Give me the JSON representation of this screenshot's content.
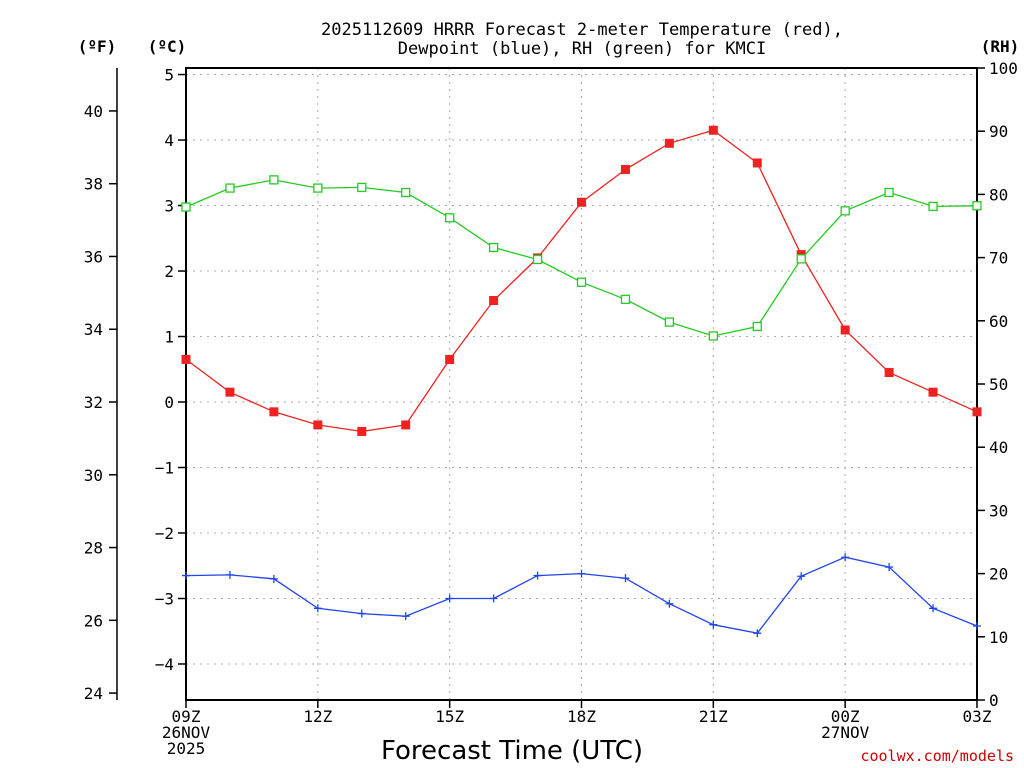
{
  "chart_data": {
    "type": "line",
    "title_lines": [
      "2025112609 HRRR Forecast 2-meter Temperature (red),",
      "Dewpoint (blue), RH (green) for KMCI"
    ],
    "xlabel": "Forecast Time (UTC)",
    "credit": "coolwx.com/models",
    "x_hours": [
      9,
      10,
      11,
      12,
      13,
      14,
      15,
      16,
      17,
      18,
      19,
      20,
      21,
      22,
      23,
      24,
      25,
      26,
      27
    ],
    "x_ticks": [
      {
        "hour": 9,
        "lines": [
          "09Z",
          "26NOV",
          "2025"
        ]
      },
      {
        "hour": 12,
        "lines": [
          "12Z"
        ]
      },
      {
        "hour": 15,
        "lines": [
          "15Z"
        ]
      },
      {
        "hour": 18,
        "lines": [
          "18Z"
        ]
      },
      {
        "hour": 21,
        "lines": [
          "21Z"
        ]
      },
      {
        "hour": 24,
        "lines": [
          "00Z",
          "27NOV"
        ]
      },
      {
        "hour": 27,
        "lines": [
          "03Z"
        ]
      }
    ],
    "xlim": [
      9,
      27
    ],
    "axes": {
      "celsius": {
        "unit_label": "(ºC)",
        "ylim": [
          -4.55,
          5.1
        ],
        "ticks": [
          -4,
          -3,
          -2,
          -1,
          0,
          1,
          2,
          3,
          4,
          5
        ]
      },
      "fahrenheit": {
        "unit_label": "(ºF)",
        "ticks": [
          24,
          26,
          28,
          30,
          32,
          34,
          36,
          38,
          40
        ]
      },
      "rh": {
        "unit_label": "(RH)",
        "ylim": [
          0,
          100
        ],
        "ticks": [
          0,
          10,
          20,
          30,
          40,
          50,
          60,
          70,
          80,
          90,
          100
        ]
      }
    },
    "series": [
      {
        "name": "2-meter Temperature",
        "axis": "celsius",
        "color": "#ee2222",
        "marker": "filled-square",
        "values": [
          0.65,
          0.15,
          -0.15,
          -0.35,
          -0.45,
          -0.35,
          0.65,
          1.55,
          2.2,
          3.05,
          3.55,
          3.95,
          4.15,
          3.65,
          2.25,
          1.1,
          0.45,
          0.15,
          -0.15
        ]
      },
      {
        "name": "Dewpoint",
        "axis": "celsius",
        "color": "#2244ee",
        "marker": "plus",
        "values": [
          -2.65,
          -2.64,
          -2.7,
          -3.15,
          -3.23,
          -3.27,
          -3.0,
          -3.0,
          -2.65,
          -2.62,
          -2.69,
          -3.08,
          -3.4,
          -3.53,
          -2.66,
          -2.37,
          -2.52,
          -3.15,
          -3.42
        ]
      },
      {
        "name": "RH",
        "axis": "rh",
        "color": "#22cc22",
        "marker": "open-square",
        "values": [
          78,
          81,
          82.3,
          81,
          81.1,
          80.3,
          76.3,
          71.6,
          69.7,
          66.1,
          63.4,
          59.8,
          57.6,
          59.1,
          69.8,
          77.4,
          80.3,
          78.1,
          78.2
        ]
      }
    ],
    "grid": true
  }
}
